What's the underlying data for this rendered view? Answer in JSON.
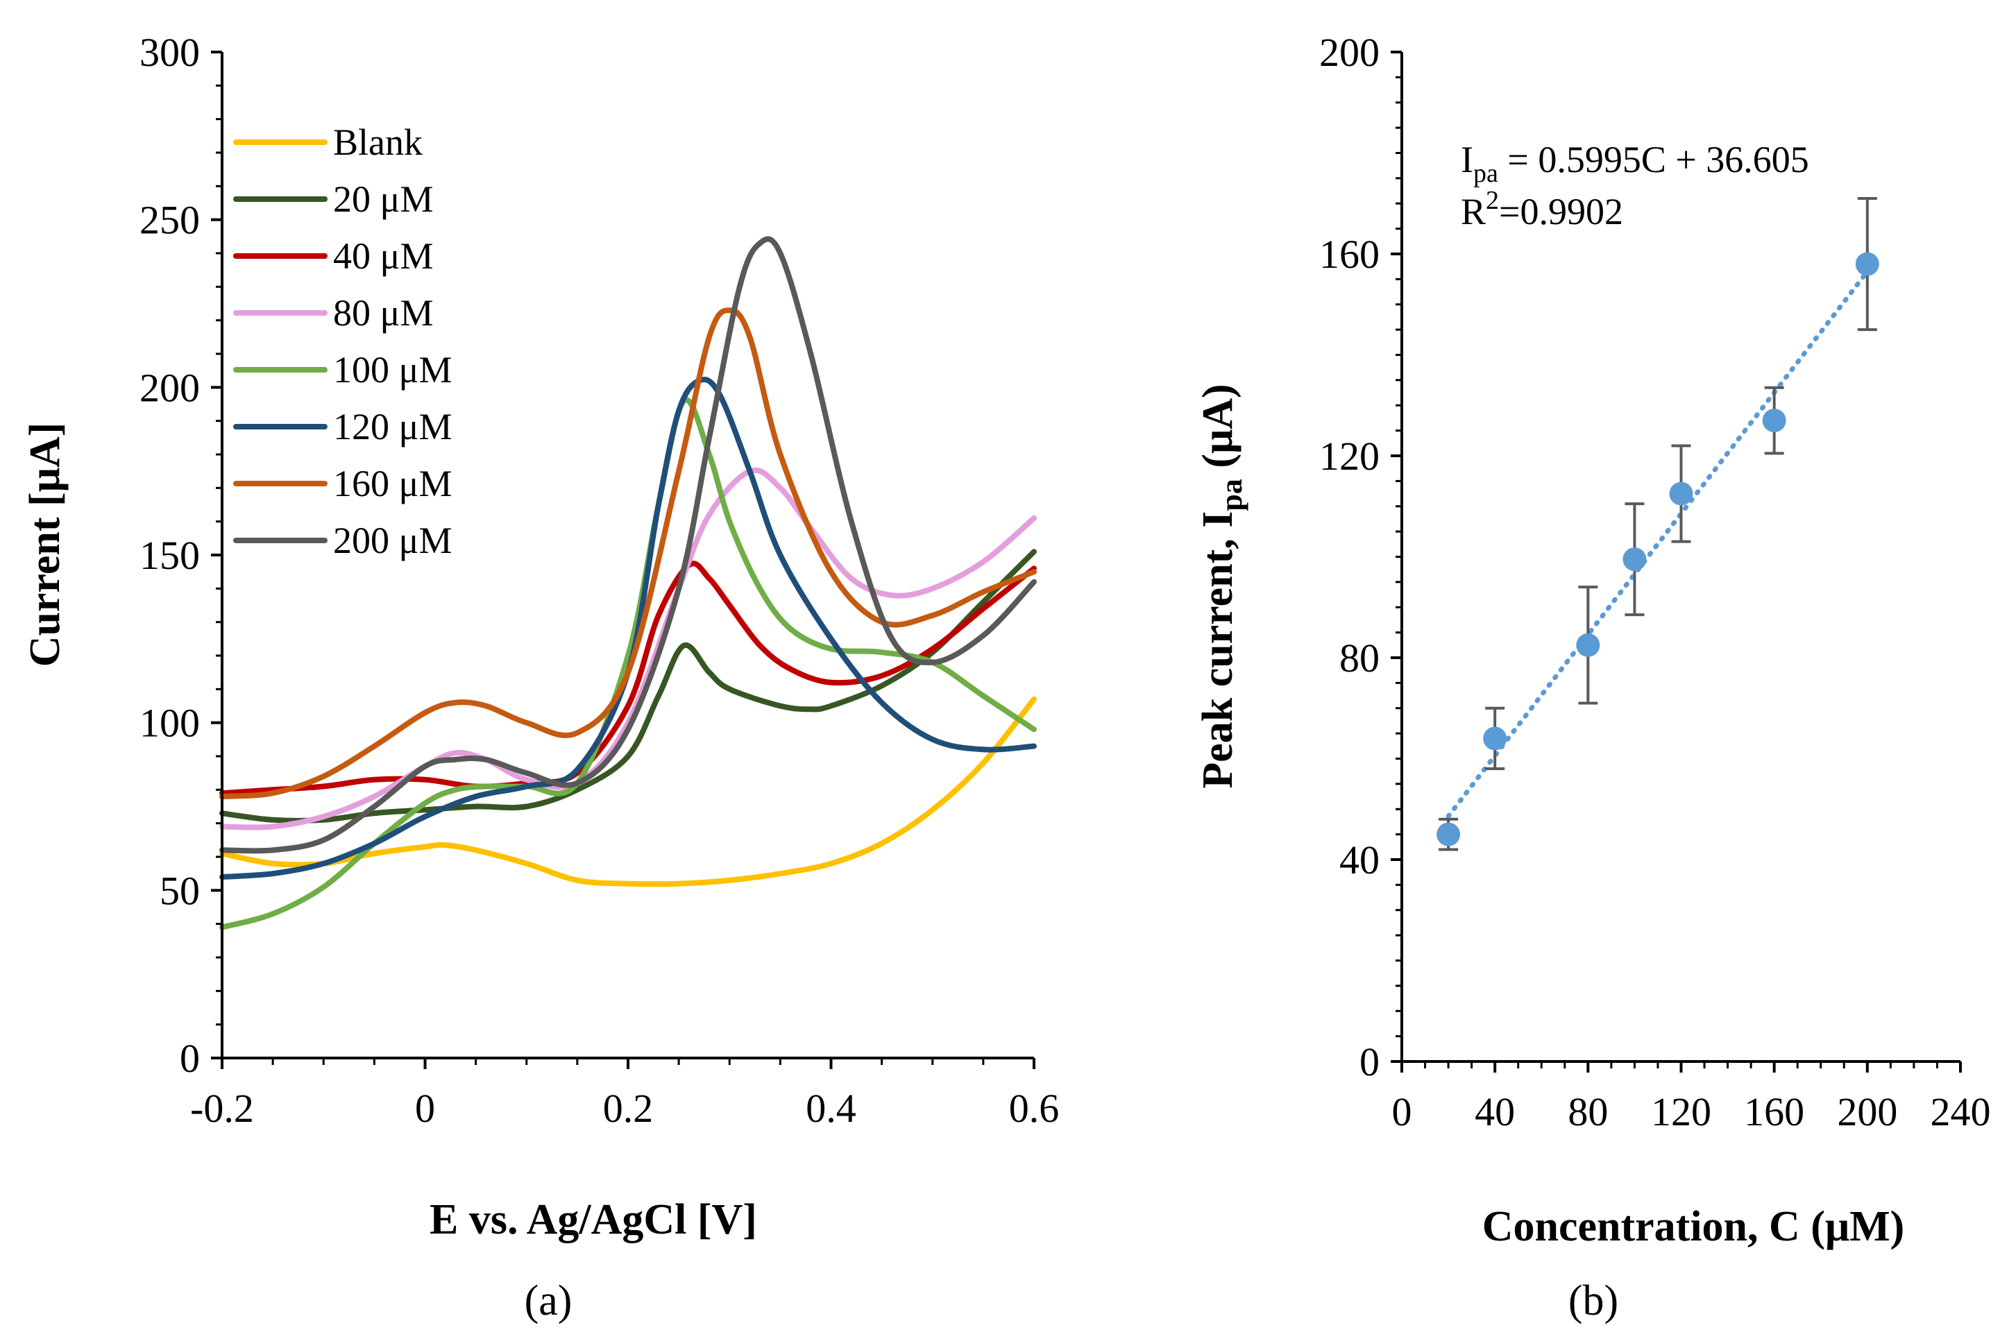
{
  "chart_data": [
    {
      "id": "a",
      "type": "line",
      "panel_label": "(a)",
      "xlabel": "E vs. Ag/AgCl [V]",
      "ylabel": "Current [μA]",
      "xlim": [
        -0.2,
        0.6
      ],
      "ylim": [
        0,
        300
      ],
      "x_ticks": [
        "-0.2",
        "0",
        "0.2",
        "0.4",
        "0.6"
      ],
      "y_ticks": [
        "0",
        "50",
        "100",
        "150",
        "200",
        "250",
        "300"
      ],
      "legend_position": "top-left",
      "series": [
        {
          "name": "Blank",
          "color": "#ffc000",
          "points": [
            [
              -0.2,
              61
            ],
            [
              -0.15,
              58
            ],
            [
              -0.1,
              58
            ],
            [
              -0.05,
              61
            ],
            [
              0.0,
              63
            ],
            [
              0.02,
              63.5
            ],
            [
              0.05,
              62
            ],
            [
              0.1,
              58
            ],
            [
              0.15,
              53
            ],
            [
              0.2,
              52
            ],
            [
              0.25,
              52
            ],
            [
              0.3,
              53
            ],
            [
              0.35,
              55
            ],
            [
              0.4,
              58
            ],
            [
              0.45,
              64
            ],
            [
              0.5,
              74
            ],
            [
              0.55,
              88
            ],
            [
              0.6,
              107
            ]
          ]
        },
        {
          "name": "20 μM",
          "color": "#375623",
          "points": [
            [
              -0.2,
              73
            ],
            [
              -0.15,
              71
            ],
            [
              -0.1,
              71
            ],
            [
              -0.05,
              73
            ],
            [
              0.0,
              74
            ],
            [
              0.05,
              75
            ],
            [
              0.1,
              75
            ],
            [
              0.15,
              80
            ],
            [
              0.2,
              90
            ],
            [
              0.23,
              108
            ],
            [
              0.255,
              123
            ],
            [
              0.28,
              115
            ],
            [
              0.3,
              110
            ],
            [
              0.35,
              105
            ],
            [
              0.38,
              104
            ],
            [
              0.4,
              105
            ],
            [
              0.45,
              111
            ],
            [
              0.5,
              121
            ],
            [
              0.55,
              136
            ],
            [
              0.6,
              151
            ]
          ]
        },
        {
          "name": "40  μM",
          "color": "#c00000",
          "points": [
            [
              -0.2,
              79
            ],
            [
              -0.15,
              80
            ],
            [
              -0.1,
              81
            ],
            [
              -0.05,
              83
            ],
            [
              0.0,
              83
            ],
            [
              0.05,
              81
            ],
            [
              0.1,
              82
            ],
            [
              0.15,
              85
            ],
            [
              0.2,
              105
            ],
            [
              0.23,
              132
            ],
            [
              0.26,
              147
            ],
            [
              0.28,
              143
            ],
            [
              0.3,
              135
            ],
            [
              0.33,
              123
            ],
            [
              0.36,
              116
            ],
            [
              0.4,
              112
            ],
            [
              0.45,
              114
            ],
            [
              0.5,
              122
            ],
            [
              0.55,
              134
            ],
            [
              0.6,
              146
            ]
          ]
        },
        {
          "name": "80 μM",
          "color": "#e49edd",
          "points": [
            [
              -0.2,
              69
            ],
            [
              -0.15,
              69
            ],
            [
              -0.1,
              72
            ],
            [
              -0.05,
              78
            ],
            [
              0.0,
              87
            ],
            [
              0.03,
              91
            ],
            [
              0.06,
              89
            ],
            [
              0.1,
              83
            ],
            [
              0.15,
              82
            ],
            [
              0.2,
              100
            ],
            [
              0.25,
              140
            ],
            [
              0.28,
              162
            ],
            [
              0.32,
              175
            ],
            [
              0.35,
              170
            ],
            [
              0.38,
              158
            ],
            [
              0.42,
              143
            ],
            [
              0.46,
              138
            ],
            [
              0.5,
              140
            ],
            [
              0.55,
              148
            ],
            [
              0.6,
              161
            ]
          ]
        },
        {
          "name": "100 μM",
          "color": "#70ad47",
          "points": [
            [
              -0.2,
              39
            ],
            [
              -0.15,
              43
            ],
            [
              -0.1,
              51
            ],
            [
              -0.05,
              64
            ],
            [
              0.0,
              76
            ],
            [
              0.03,
              80
            ],
            [
              0.06,
              81
            ],
            [
              0.1,
              81
            ],
            [
              0.15,
              82
            ],
            [
              0.2,
              120
            ],
            [
              0.23,
              165
            ],
            [
              0.255,
              196
            ],
            [
              0.28,
              180
            ],
            [
              0.3,
              160
            ],
            [
              0.33,
              140
            ],
            [
              0.36,
              128
            ],
            [
              0.4,
              122
            ],
            [
              0.45,
              121
            ],
            [
              0.5,
              118
            ],
            [
              0.55,
              108
            ],
            [
              0.6,
              98
            ]
          ]
        },
        {
          "name": "120  μM",
          "color": "#1f4e79",
          "points": [
            [
              -0.2,
              54
            ],
            [
              -0.15,
              55
            ],
            [
              -0.1,
              58
            ],
            [
              -0.05,
              64
            ],
            [
              0.0,
              72
            ],
            [
              0.05,
              78
            ],
            [
              0.1,
              81
            ],
            [
              0.15,
              86
            ],
            [
              0.2,
              115
            ],
            [
              0.23,
              165
            ],
            [
              0.25,
              193
            ],
            [
              0.27,
              202
            ],
            [
              0.29,
              198
            ],
            [
              0.32,
              175
            ],
            [
              0.35,
              150
            ],
            [
              0.4,
              125
            ],
            [
              0.45,
              106
            ],
            [
              0.5,
              95
            ],
            [
              0.55,
              92
            ],
            [
              0.6,
              93
            ]
          ]
        },
        {
          "name": "160 μM",
          "color": "#c55a11",
          "points": [
            [
              -0.2,
              78
            ],
            [
              -0.15,
              79
            ],
            [
              -0.1,
              84
            ],
            [
              -0.05,
              93
            ],
            [
              0.0,
              103
            ],
            [
              0.03,
              106
            ],
            [
              0.06,
              105
            ],
            [
              0.1,
              100
            ],
            [
              0.15,
              97
            ],
            [
              0.2,
              115
            ],
            [
              0.25,
              175
            ],
            [
              0.28,
              215
            ],
            [
              0.3,
              223
            ],
            [
              0.32,
              215
            ],
            [
              0.35,
              180
            ],
            [
              0.4,
              145
            ],
            [
              0.45,
              130
            ],
            [
              0.5,
              132
            ],
            [
              0.55,
              139
            ],
            [
              0.6,
              145
            ]
          ]
        },
        {
          "name": "200 μM",
          "color": "#595959",
          "points": [
            [
              -0.2,
              62
            ],
            [
              -0.15,
              62
            ],
            [
              -0.1,
              65
            ],
            [
              -0.05,
              75
            ],
            [
              0.0,
              87
            ],
            [
              0.03,
              89
            ],
            [
              0.06,
              89
            ],
            [
              0.1,
              85
            ],
            [
              0.15,
              82
            ],
            [
              0.2,
              98
            ],
            [
              0.25,
              140
            ],
            [
              0.28,
              185
            ],
            [
              0.31,
              230
            ],
            [
              0.33,
              243
            ],
            [
              0.35,
              240
            ],
            [
              0.38,
              210
            ],
            [
              0.42,
              160
            ],
            [
              0.46,
              125
            ],
            [
              0.5,
              118
            ],
            [
              0.55,
              126
            ],
            [
              0.6,
              142
            ]
          ]
        }
      ]
    },
    {
      "id": "b",
      "type": "scatter",
      "panel_label": "(b)",
      "xlabel": "Concentration, C (μM)",
      "ylabel": "Peak current, I",
      "ylabel_sub": "pa",
      "ylabel_tail": " (μA)",
      "xlim": [
        0,
        240
      ],
      "ylim": [
        0,
        200
      ],
      "x_ticks": [
        "0",
        "40",
        "80",
        "120",
        "160",
        "200",
        "240"
      ],
      "y_ticks": [
        "0",
        "40",
        "80",
        "120",
        "160",
        "200"
      ],
      "marker_color": "#5b9bd5",
      "error_bar_color": "#595959",
      "trendline": {
        "slope": 0.5995,
        "intercept": 36.605,
        "x_range": [
          20,
          200
        ],
        "style": "dotted",
        "color": "#5b9bd5"
      },
      "equation": {
        "prefix": "I",
        "sub": "pa",
        "rest": " = 0.5995C + 36.605",
        "r2_prefix": "R",
        "r2_sup": "2",
        "r2_rest": "=0.9902"
      },
      "points": [
        {
          "x": 20,
          "y": 45,
          "err": 3
        },
        {
          "x": 40,
          "y": 64,
          "err": 6
        },
        {
          "x": 80,
          "y": 82.5,
          "err": 11.5
        },
        {
          "x": 100,
          "y": 99.5,
          "err": 11
        },
        {
          "x": 120,
          "y": 112.5,
          "err": 9.5
        },
        {
          "x": 160,
          "y": 127,
          "err": 6.5
        },
        {
          "x": 200,
          "y": 158,
          "err": 13
        }
      ]
    }
  ]
}
